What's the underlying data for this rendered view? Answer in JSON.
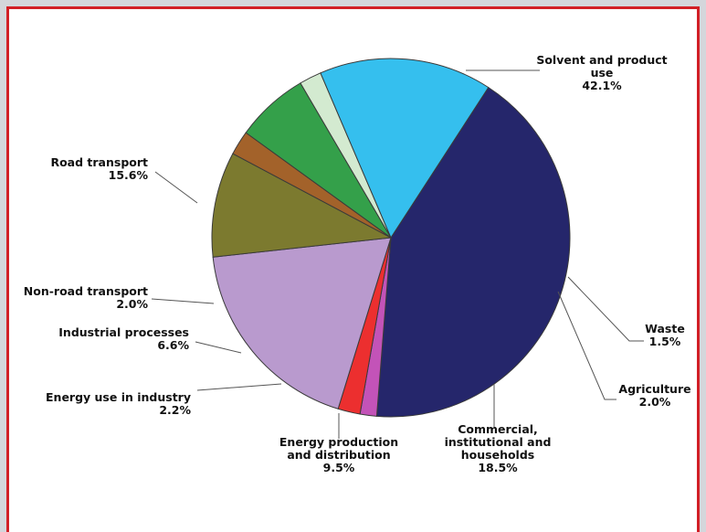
{
  "chart_data": {
    "type": "pie",
    "title": "",
    "start_angle_deg": -57,
    "direction": "clockwise",
    "slices": [
      {
        "name": "Solvent and product use",
        "label_lines": [
          "Solvent and product",
          "use"
        ],
        "value": 42.1,
        "value_label": "42.1%",
        "color": "#25266b"
      },
      {
        "name": "Waste",
        "label_lines": [
          "Waste"
        ],
        "value": 1.5,
        "value_label": "1.5%",
        "color": "#c353b8"
      },
      {
        "name": "Agriculture",
        "label_lines": [
          "Agriculture"
        ],
        "value": 2.0,
        "value_label": "2.0%",
        "color": "#ec2f2f"
      },
      {
        "name": "Commercial, institutional and households",
        "label_lines": [
          "Commercial,",
          "institutional  and",
          "households"
        ],
        "value": 18.5,
        "value_label": "18.5%",
        "color": "#b99ace"
      },
      {
        "name": "Energy production and distribution",
        "label_lines": [
          "Energy production",
          "and distribution"
        ],
        "value": 9.5,
        "value_label": "9.5%",
        "color": "#7c7a2f"
      },
      {
        "name": "Energy use in industry",
        "label_lines": [
          "Energy use in industry"
        ],
        "value": 2.2,
        "value_label": "2.2%",
        "color": "#a3622a"
      },
      {
        "name": "Industrial processes",
        "label_lines": [
          "Industrial processes"
        ],
        "value": 6.6,
        "value_label": "6.6%",
        "color": "#34a04a"
      },
      {
        "name": "Non-road transport",
        "label_lines": [
          "Non-road transport"
        ],
        "value": 2.0,
        "value_label": "2.0%",
        "color": "#d3ead0"
      },
      {
        "name": "Road transport",
        "label_lines": [
          "Road transport"
        ],
        "value": 15.6,
        "value_label": "15.6%",
        "color": "#35bfee"
      }
    ]
  }
}
